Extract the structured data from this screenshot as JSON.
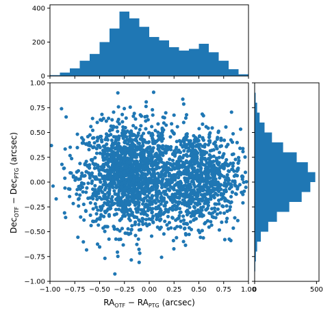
{
  "chart_data": [
    {
      "type": "scatter",
      "name": "main",
      "xlabel": {
        "base1": "RA",
        "sub1": "OTF",
        "mid": " − RA",
        "sub2": "PTG",
        "tail": " (arcsec)"
      },
      "ylabel": {
        "base1": "Dec",
        "sub1": "OTF",
        "mid": " − Dec",
        "sub2": "PTG",
        "tail": " (arcsec)"
      },
      "xlim": [
        -1.0,
        1.0
      ],
      "ylim": [
        -1.0,
        1.0
      ],
      "x_ticks": [
        -1.0,
        -0.75,
        -0.5,
        -0.25,
        0.0,
        0.25,
        0.5,
        0.75,
        1.0
      ],
      "x_tick_labels": [
        "−1.00",
        "−0.75",
        "−0.50",
        "−0.25",
        "0.00",
        "0.25",
        "0.50",
        "0.75",
        "1.00"
      ],
      "y_ticks": [
        -1.0,
        -0.75,
        -0.5,
        -0.25,
        0.0,
        0.25,
        0.5,
        0.75,
        1.0
      ],
      "y_tick_labels": [
        "−1.00",
        "−0.75",
        "−0.50",
        "−0.25",
        "0.00",
        "0.25",
        "0.50",
        "0.75",
        "1.00"
      ],
      "color": "#1f77b4",
      "clusters": [
        {
          "cx": -0.22,
          "cy": 0.08,
          "sx": 0.22,
          "sy": 0.25,
          "n": 1300
        },
        {
          "cx": 0.48,
          "cy": 0.05,
          "sx": 0.22,
          "sy": 0.24,
          "n": 850
        },
        {
          "cx": 0.05,
          "cy": 0.0,
          "sx": 0.45,
          "sy": 0.35,
          "n": 350
        }
      ],
      "grid": false
    },
    {
      "type": "bar",
      "name": "top-histogram",
      "orientation": "vertical",
      "bin_edges": [
        -1.0,
        -0.9,
        -0.8,
        -0.7,
        -0.6,
        -0.5,
        -0.4,
        -0.3,
        -0.2,
        -0.1,
        0.0,
        0.1,
        0.2,
        0.3,
        0.4,
        0.5,
        0.6,
        0.7,
        0.8,
        0.9,
        1.0
      ],
      "values": [
        5,
        20,
        45,
        90,
        130,
        200,
        280,
        380,
        340,
        290,
        230,
        210,
        170,
        150,
        160,
        190,
        140,
        90,
        40,
        10
      ],
      "ylim": [
        0,
        420
      ],
      "y_ticks": [
        0,
        200,
        400
      ],
      "y_tick_labels": [
        "0",
        "200",
        "400"
      ],
      "color": "#1f77b4"
    },
    {
      "type": "bar",
      "name": "right-histogram",
      "orientation": "horizontal",
      "bin_edges": [
        -1.0,
        -0.9,
        -0.8,
        -0.7,
        -0.6,
        -0.5,
        -0.4,
        -0.3,
        -0.2,
        -0.1,
        0.0,
        0.1,
        0.2,
        0.3,
        0.4,
        0.5,
        0.6,
        0.7,
        0.8,
        0.9,
        1.0
      ],
      "values": [
        2,
        5,
        10,
        20,
        50,
        110,
        180,
        280,
        380,
        450,
        490,
        430,
        340,
        230,
        140,
        80,
        40,
        20,
        8,
        3
      ],
      "xlim": [
        0,
        520
      ],
      "x_ticks": [
        0,
        500
      ],
      "x_tick_labels": [
        "0",
        "500"
      ],
      "color": "#1f77b4"
    }
  ]
}
